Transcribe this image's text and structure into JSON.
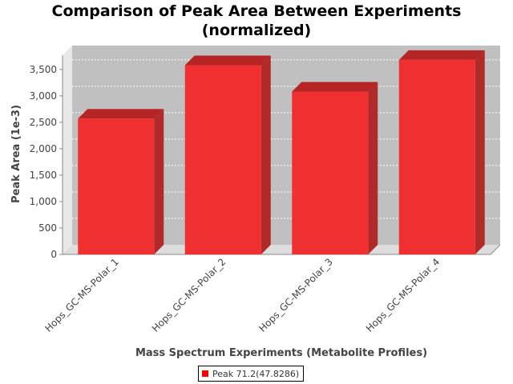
{
  "chart_data": {
    "type": "bar",
    "title": "Comparison of Peak Area Between Experiments",
    "subtitle": "(normalized)",
    "xlabel": "Mass Spectrum Experiments (Metabolite Profiles)",
    "ylabel": "Peak Area (1e-3)",
    "categories": [
      "Hops_GC-MS-Polar_1",
      "Hops_GC-MS-Polar_2",
      "Hops_GC-MS-Polar_3",
      "Hops_GC-MS-Polar_4"
    ],
    "series": [
      {
        "name": "Peak 71.2(47.8286)",
        "values": [
          2570,
          3580,
          3080,
          3680
        ]
      }
    ],
    "ylim": [
      0,
      3800
    ],
    "yticks": [
      0,
      500,
      1000,
      1500,
      2000,
      2500,
      3000,
      3500
    ],
    "ytick_labels": [
      "0",
      "500",
      "1,000",
      "1,500",
      "2,000",
      "2,500",
      "3,000",
      "3,500"
    ],
    "grid": true,
    "legend_position": "bottom-center",
    "colors": {
      "bar_front": "#f03030",
      "bar_top": "#b52525",
      "bar_side": "#b02a2a",
      "plot_background": "#c0c0c0",
      "floor": "#dddddd",
      "legend_swatch": "#ff0000"
    }
  }
}
